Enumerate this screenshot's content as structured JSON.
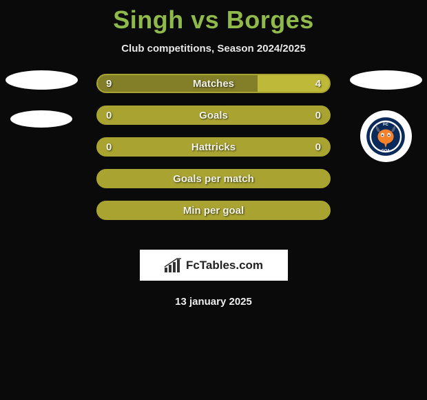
{
  "title": "Singh vs Borges",
  "subtitle": "Club competitions, Season 2024/2025",
  "date": "13 january 2025",
  "watermark": "FcTables.com",
  "colors": {
    "title": "#8fb94a",
    "bar_border": "#a9a431",
    "bar_left_fill": "#837f29",
    "bar_right_fill": "#bfb93a",
    "bar_empty": "#a9a431",
    "background": "#0a0a0a",
    "text": "#f2f2e6"
  },
  "bars": [
    {
      "label": "Matches",
      "left": "9",
      "right": "4",
      "left_pct": 69,
      "right_pct": 31,
      "show_vals": true
    },
    {
      "label": "Goals",
      "left": "0",
      "right": "0",
      "left_pct": 0,
      "right_pct": 0,
      "show_vals": true
    },
    {
      "label": "Hattricks",
      "left": "0",
      "right": "0",
      "left_pct": 0,
      "right_pct": 0,
      "show_vals": true
    },
    {
      "label": "Goals per match",
      "left": "",
      "right": "",
      "left_pct": 0,
      "right_pct": 0,
      "show_vals": false
    },
    {
      "label": "Min per goal",
      "left": "",
      "right": "",
      "left_pct": 0,
      "right_pct": 0,
      "show_vals": false
    }
  ],
  "club_badge": {
    "top_text": "FC",
    "bottom_text": "GOA",
    "ring_color": "#0a2a5a",
    "face_color": "#f5822a",
    "horn_color": "#516078"
  }
}
